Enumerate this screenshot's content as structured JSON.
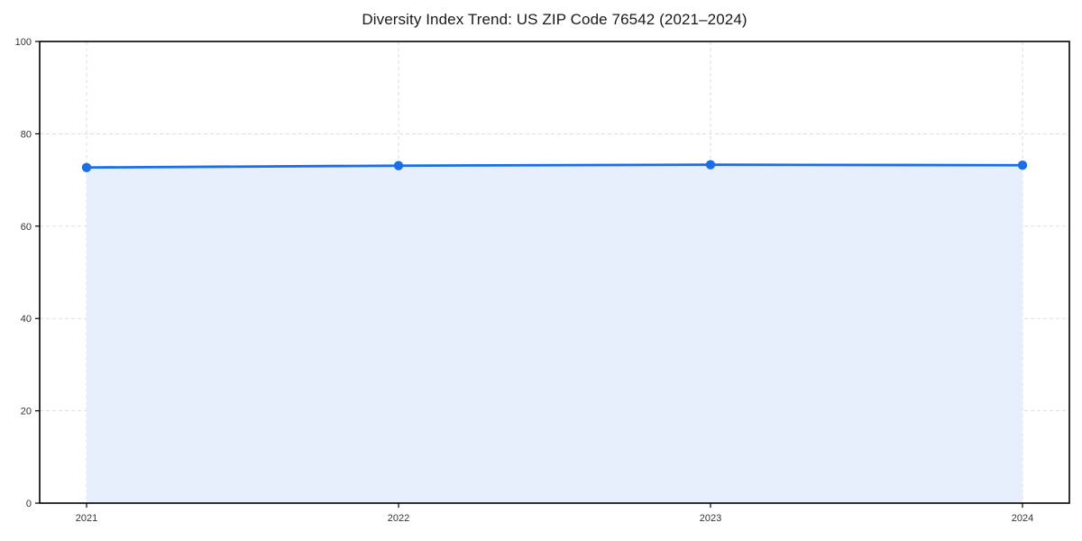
{
  "chart_data": {
    "type": "line",
    "title": "Diversity Index Trend: US ZIP Code 76542 (2021–2024)",
    "x": [
      2021,
      2022,
      2023,
      2024
    ],
    "xticks": [
      "2021",
      "2022",
      "2023",
      "2024"
    ],
    "series": [
      {
        "name": "Diversity Index",
        "values": [
          72.7,
          73.1,
          73.3,
          73.2
        ]
      }
    ],
    "xlabel": "",
    "ylabel": "",
    "ylim": [
      0,
      100
    ],
    "yticks": [
      0,
      20,
      40,
      60,
      80,
      100
    ],
    "grid": true,
    "grid_style": "dashed",
    "legend_position": "none",
    "area_fill": true,
    "colors": {
      "line": "#1a6fe6",
      "marker": "#1a6fe6",
      "fill": "#e8effc",
      "grid": "#d9d9d9",
      "spine": "#000000",
      "tick": "#000000",
      "tick_label": "#333333",
      "title": "#1a1a1a",
      "background": "#ffffff"
    }
  }
}
